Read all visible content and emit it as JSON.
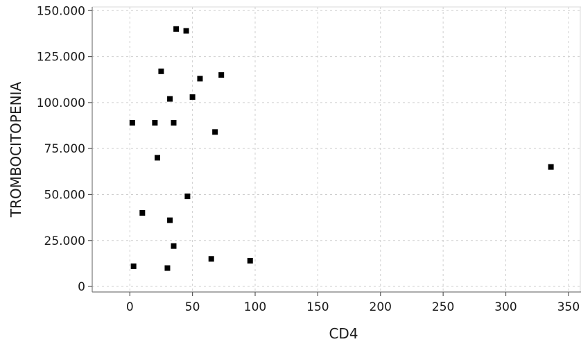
{
  "chart_data": {
    "type": "scatter",
    "title": "",
    "xlabel": "CD4",
    "ylabel": "TROMBOCITOPENIA",
    "xlim": [
      -30,
      360
    ],
    "ylim": [
      -3000,
      152000
    ],
    "x_ticks": [
      0,
      50,
      100,
      150,
      200,
      250,
      300,
      350
    ],
    "x_tick_labels": [
      "0",
      "50",
      "100",
      "150",
      "200",
      "250",
      "300",
      "350"
    ],
    "y_ticks": [
      0,
      25000,
      50000,
      75000,
      100000,
      125000,
      150000
    ],
    "y_tick_labels": [
      "0",
      "25.000",
      "50.000",
      "75.000",
      "100.000",
      "125.000",
      "150.000"
    ],
    "grid": true,
    "legend": "none",
    "marker_color": "#000000",
    "series": [
      {
        "x": [
          37,
          45,
          25,
          73,
          56,
          32,
          50,
          2,
          20,
          35,
          68,
          22,
          336,
          46,
          10,
          32,
          35,
          3,
          30,
          65,
          96
        ],
        "y": [
          140000,
          139000,
          117000,
          115000,
          113000,
          102000,
          103000,
          89000,
          89000,
          89000,
          84000,
          70000,
          65000,
          49000,
          40000,
          36000,
          22000,
          11000,
          10000,
          15000,
          14000
        ]
      }
    ]
  }
}
